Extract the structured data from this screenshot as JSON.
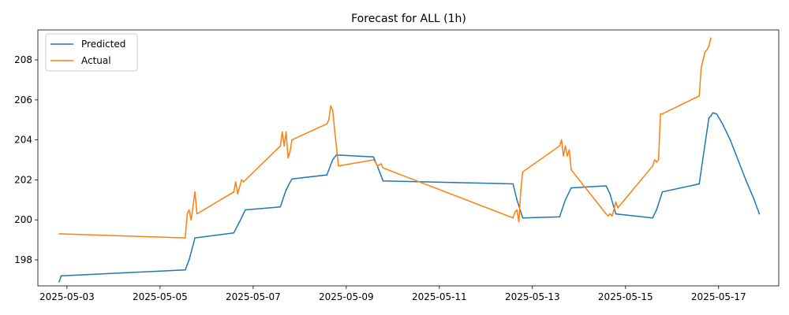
{
  "chart_data": {
    "type": "line",
    "title": "Forecast for ALL (1h)",
    "xlabel": "",
    "ylabel": "",
    "x_tick_labels": [
      "2025-05-03",
      "2025-05-05",
      "2025-05-07",
      "2025-05-09",
      "2025-05-11",
      "2025-05-13",
      "2025-05-15",
      "2025-05-17"
    ],
    "y_ticks": [
      198,
      200,
      202,
      204,
      206,
      208
    ],
    "xlim": [
      "2025-05-02 09:00",
      "2025-05-18 07:00"
    ],
    "ylim": [
      196.7,
      209.5
    ],
    "grid": false,
    "legend_position": "top-left",
    "series": [
      {
        "name": "Predicted",
        "color": "#1f77b4",
        "points": [
          [
            "2025-05-02 20:00",
            196.9
          ],
          [
            "2025-05-02 21:00",
            197.2
          ],
          [
            "2025-05-05 13:00",
            197.5
          ],
          [
            "2025-05-05 15:00",
            198.0
          ],
          [
            "2025-05-05 18:00",
            199.1
          ],
          [
            "2025-05-06 14:00",
            199.35
          ],
          [
            "2025-05-06 17:00",
            199.9
          ],
          [
            "2025-05-06 20:00",
            200.5
          ],
          [
            "2025-05-07 14:00",
            200.65
          ],
          [
            "2025-05-07 17:00",
            201.5
          ],
          [
            "2025-05-07 20:00",
            202.05
          ],
          [
            "2025-05-08 14:00",
            202.25
          ],
          [
            "2025-05-08 17:00",
            203.0
          ],
          [
            "2025-05-08 19:00",
            203.25
          ],
          [
            "2025-05-09 14:00",
            203.15
          ],
          [
            "2025-05-09 16:00",
            202.7
          ],
          [
            "2025-05-09 19:00",
            201.95
          ],
          [
            "2025-05-12 14:00",
            201.8
          ],
          [
            "2025-05-12 16:00",
            201.0
          ],
          [
            "2025-05-12 19:00",
            200.1
          ],
          [
            "2025-05-13 14:00",
            200.15
          ],
          [
            "2025-05-13 17:00",
            201.0
          ],
          [
            "2025-05-13 20:00",
            201.6
          ],
          [
            "2025-05-14 14:00",
            201.7
          ],
          [
            "2025-05-14 16:00",
            201.3
          ],
          [
            "2025-05-14 19:00",
            200.3
          ],
          [
            "2025-05-15 14:00",
            200.1
          ],
          [
            "2025-05-15 16:00",
            200.5
          ],
          [
            "2025-05-15 19:00",
            201.4
          ],
          [
            "2025-05-16 14:00",
            201.8
          ],
          [
            "2025-05-16 17:00",
            203.8
          ],
          [
            "2025-05-16 19:00",
            205.1
          ],
          [
            "2025-05-16 20:00",
            205.2
          ],
          [
            "2025-05-16 21:00",
            205.35
          ],
          [
            "2025-05-16 23:00",
            205.3
          ],
          [
            "2025-05-17 02:00",
            204.8
          ],
          [
            "2025-05-17 06:00",
            204.0
          ],
          [
            "2025-05-17 10:00",
            203.0
          ],
          [
            "2025-05-17 14:00",
            202.0
          ],
          [
            "2025-05-17 18:00",
            201.1
          ],
          [
            "2025-05-17 21:00",
            200.3
          ]
        ]
      },
      {
        "name": "Actual",
        "color": "#ff7f0e",
        "points": [
          [
            "2025-05-02 20:00",
            199.3
          ],
          [
            "2025-05-02 21:00",
            199.3
          ],
          [
            "2025-05-05 13:00",
            199.1
          ],
          [
            "2025-05-05 14:00",
            200.3
          ],
          [
            "2025-05-05 15:00",
            200.5
          ],
          [
            "2025-05-05 16:00",
            200.0
          ],
          [
            "2025-05-05 18:00",
            201.4
          ],
          [
            "2025-05-05 19:00",
            200.3
          ],
          [
            "2025-05-06 14:00",
            201.4
          ],
          [
            "2025-05-06 15:00",
            201.9
          ],
          [
            "2025-05-06 16:00",
            201.3
          ],
          [
            "2025-05-06 18:00",
            202.0
          ],
          [
            "2025-05-06 19:00",
            201.9
          ],
          [
            "2025-05-07 14:00",
            203.7
          ],
          [
            "2025-05-07 15:00",
            204.4
          ],
          [
            "2025-05-07 16:00",
            203.7
          ],
          [
            "2025-05-07 17:00",
            204.4
          ],
          [
            "2025-05-07 18:00",
            203.1
          ],
          [
            "2025-05-07 19:00",
            203.4
          ],
          [
            "2025-05-07 20:00",
            204.0
          ],
          [
            "2025-05-08 14:00",
            204.8
          ],
          [
            "2025-05-08 15:00",
            205.0
          ],
          [
            "2025-05-08 16:00",
            205.7
          ],
          [
            "2025-05-08 17:00",
            205.5
          ],
          [
            "2025-05-08 18:00",
            204.5
          ],
          [
            "2025-05-08 20:00",
            202.7
          ],
          [
            "2025-05-09 14:00",
            203.0
          ],
          [
            "2025-05-09 15:00",
            202.9
          ],
          [
            "2025-05-09 16:00",
            202.7
          ],
          [
            "2025-05-09 17:00",
            202.75
          ],
          [
            "2025-05-09 18:00",
            202.8
          ],
          [
            "2025-05-09 19:00",
            202.6
          ],
          [
            "2025-05-12 14:00",
            200.1
          ],
          [
            "2025-05-12 15:00",
            200.4
          ],
          [
            "2025-05-12 16:00",
            200.5
          ],
          [
            "2025-05-12 17:00",
            199.9
          ],
          [
            "2025-05-12 18:00",
            201.5
          ],
          [
            "2025-05-12 19:00",
            202.4
          ],
          [
            "2025-05-13 14:00",
            203.7
          ],
          [
            "2025-05-13 15:00",
            204.0
          ],
          [
            "2025-05-13 16:00",
            203.2
          ],
          [
            "2025-05-13 17:00",
            203.7
          ],
          [
            "2025-05-13 18:00",
            203.2
          ],
          [
            "2025-05-13 19:00",
            203.5
          ],
          [
            "2025-05-13 20:00",
            202.5
          ],
          [
            "2025-05-14 14:00",
            200.3
          ],
          [
            "2025-05-14 15:00",
            200.2
          ],
          [
            "2025-05-14 16:00",
            200.3
          ],
          [
            "2025-05-14 17:00",
            200.2
          ],
          [
            "2025-05-14 18:00",
            200.5
          ],
          [
            "2025-05-14 19:00",
            200.9
          ],
          [
            "2025-05-14 20:00",
            200.6
          ],
          [
            "2025-05-15 14:00",
            202.7
          ],
          [
            "2025-05-15 15:00",
            203.0
          ],
          [
            "2025-05-15 16:00",
            202.9
          ],
          [
            "2025-05-15 17:00",
            203.0
          ],
          [
            "2025-05-15 18:00",
            205.3
          ],
          [
            "2025-05-15 19:00",
            205.3
          ],
          [
            "2025-05-16 14:00",
            206.2
          ],
          [
            "2025-05-16 15:00",
            207.6
          ],
          [
            "2025-05-16 16:00",
            208.0
          ],
          [
            "2025-05-16 17:00",
            208.4
          ],
          [
            "2025-05-16 18:00",
            208.5
          ],
          [
            "2025-05-16 19:00",
            208.7
          ],
          [
            "2025-05-16 20:00",
            209.1
          ]
        ]
      }
    ]
  }
}
